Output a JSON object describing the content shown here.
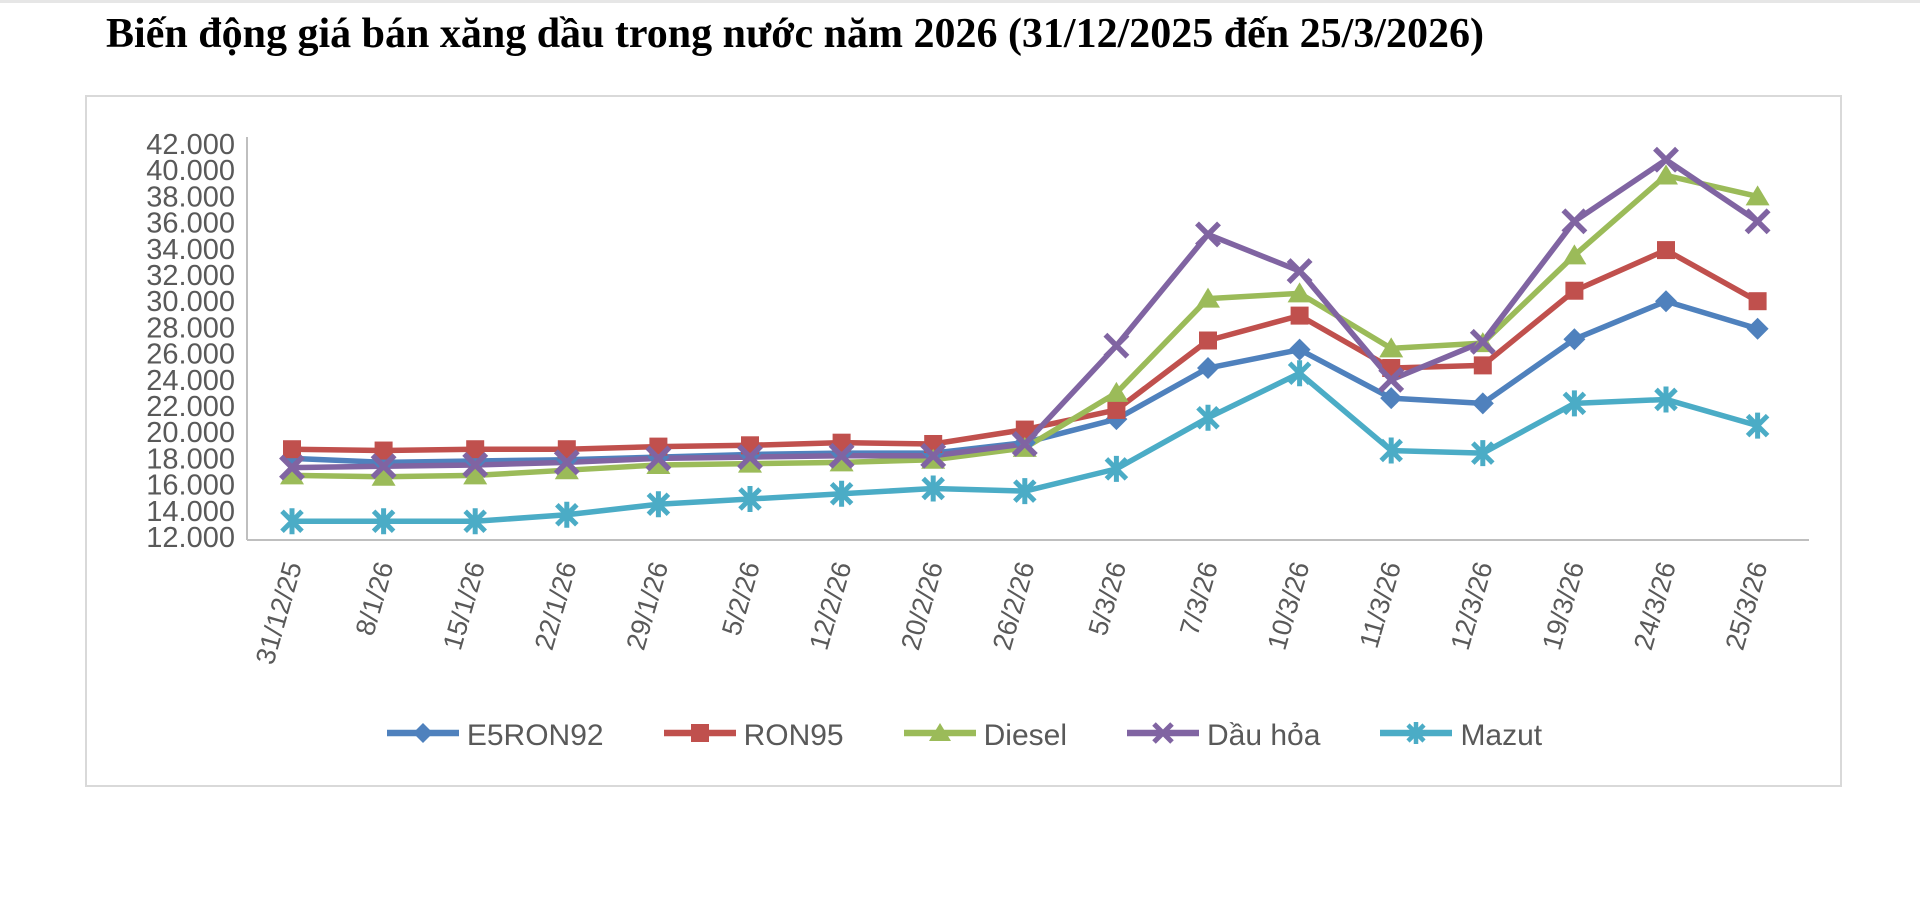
{
  "title": "Biến động giá bán xăng dầu trong nước năm 2026 (31/12/2025 đến 25/3/2026)",
  "chart_data": {
    "type": "line",
    "title": "Biến động giá bán xăng dầu trong nước năm 2026 (31/12/2025 đến 25/3/2026)",
    "categories": [
      "31/12/25",
      "8/1/26",
      "15/1/26",
      "22/1/26",
      "29/1/26",
      "5/2/26",
      "12/2/26",
      "20/2/26",
      "26/2/26",
      "5/3/26",
      "7/3/26",
      "10/3/26",
      "11/3/26",
      "12/3/26",
      "19/3/26",
      "24/3/26",
      "25/3/26"
    ],
    "series": [
      {
        "name": "E5RON92",
        "color": "#4F81BD",
        "marker": "diamond",
        "values": [
          18000,
          17700,
          17800,
          17900,
          18100,
          18300,
          18400,
          18400,
          19200,
          21000,
          24900,
          26300,
          22600,
          22200,
          27100,
          30000,
          27900
        ]
      },
      {
        "name": "RON95",
        "color": "#C0504D",
        "marker": "square",
        "values": [
          18700,
          18600,
          18700,
          18700,
          18900,
          19000,
          19200,
          19100,
          20200,
          21700,
          27000,
          28900,
          24900,
          25100,
          30800,
          33900,
          30000
        ]
      },
      {
        "name": "Diesel",
        "color": "#9BBB59",
        "marker": "triangle",
        "values": [
          16700,
          16600,
          16700,
          17100,
          17500,
          17600,
          17700,
          17900,
          18800,
          23000,
          30200,
          30600,
          26400,
          26800,
          33500,
          39600,
          38000
        ]
      },
      {
        "name": "Dầu hỏa",
        "color": "#8064A2",
        "marker": "x",
        "values": [
          17300,
          17400,
          17500,
          17700,
          18000,
          18100,
          18200,
          18200,
          19100,
          26600,
          35100,
          32300,
          24000,
          26900,
          36100,
          40800,
          36100
        ]
      },
      {
        "name": "Mazut",
        "color": "#4BACC6",
        "marker": "asterisk",
        "values": [
          13200,
          13200,
          13200,
          13700,
          14500,
          14900,
          15300,
          15700,
          15500,
          17200,
          21100,
          24500,
          18600,
          18400,
          22200,
          22500,
          20500
        ]
      }
    ],
    "y_axis": {
      "min": 12000,
      "max": 42000,
      "step": 2000,
      "tick_labels": [
        "42.000",
        "40.000",
        "38.000",
        "36.000",
        "34.000",
        "32.000",
        "30.000",
        "28.000",
        "26.000",
        "24.000",
        "22.000",
        "20.000",
        "18.000",
        "16.000",
        "14.000",
        "12.000"
      ]
    },
    "xlabel": "",
    "ylabel": "",
    "grid": false,
    "legend_position": "bottom",
    "axis_color": "#bfbfbf",
    "label_color": "#595959"
  }
}
